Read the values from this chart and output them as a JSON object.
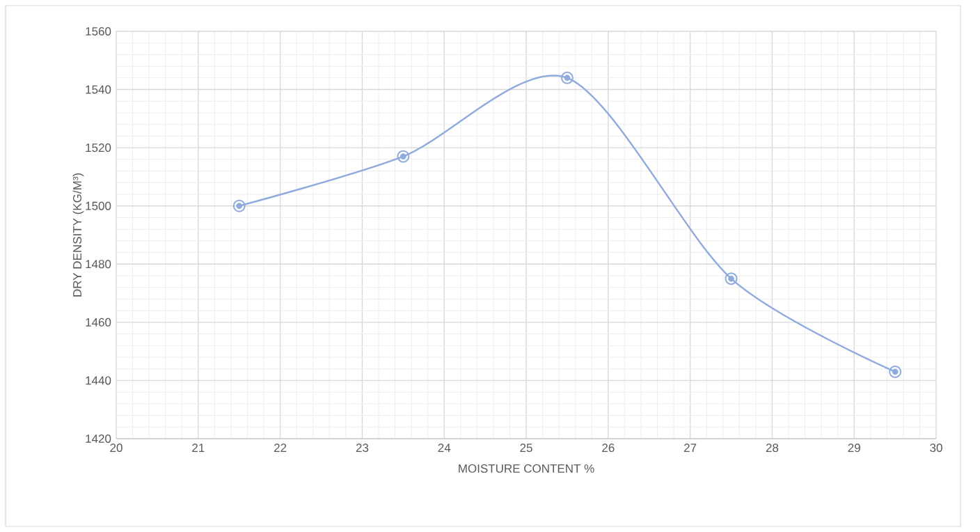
{
  "chart_data": {
    "type": "line",
    "xlabel": "MOISTURE CONTENT %",
    "ylabel": "DRY DENSITY (KG/M³)",
    "x": [
      21.5,
      23.5,
      25.5,
      27.5,
      29.5
    ],
    "series": [
      {
        "color": "#8faadc",
        "values": [
          1500,
          1517,
          1544,
          1475,
          1443
        ]
      }
    ],
    "xlim": [
      20,
      30
    ],
    "xticks": [
      20,
      21,
      22,
      23,
      24,
      25,
      26,
      27,
      28,
      29,
      30
    ],
    "ylim": [
      1420,
      1560
    ],
    "yticks": [
      1420,
      1440,
      1460,
      1480,
      1500,
      1520,
      1540,
      1560
    ],
    "grid": true,
    "marker": "circle",
    "line_style": "solid"
  }
}
